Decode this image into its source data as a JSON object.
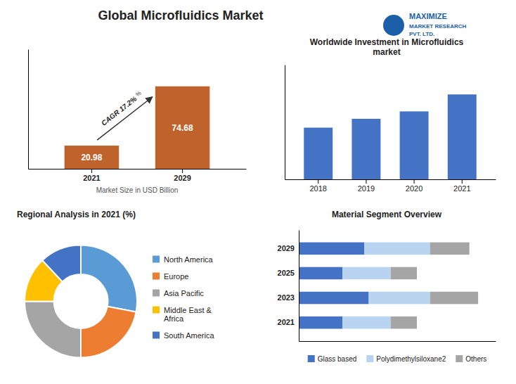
{
  "title": "Global Microfluidics Market",
  "annotations": [
    "MAXIMIZE",
    "MARKET RESEARCH",
    "PVT. LTD."
  ],
  "chart_data": [
    {
      "type": "bar",
      "categories": [
        "2021",
        "2029"
      ],
      "values": [
        20.98,
        74.68
      ],
      "color": "#C0622B",
      "x_label": "Market Size in USD Billion",
      "data_labels": true,
      "annotations": [
        "CAGR 17.2%",
        "%"
      ],
      "ylim": [
        0,
        108.286
      ],
      "tick_labels": "x"
    },
    {
      "type": "bar",
      "title": "Worldwide Investment in Microfluidics\nmarket",
      "categories": [
        "2018",
        "2019",
        "2020",
        "2021"
      ],
      "values": [
        7,
        8.2,
        9.2,
        11.5
      ],
      "color": "#4472C4",
      "ylim": [
        0,
        15.525
      ],
      "tick_labels": "x"
    },
    {
      "type": "donut",
      "title": "Regional Analysis in 2021 (%)",
      "categories": [
        "North America",
        "Europe",
        "Asia Pacific",
        "Middle East &\nAfrica",
        "South America"
      ],
      "values": [
        28,
        22,
        25,
        13,
        12
      ],
      "colors": [
        "#5B9BD5",
        "#ED7D31",
        "#A5A5A5",
        "#FFC000",
        "#4472C4"
      ],
      "legend": "right"
    },
    {
      "type": "bar",
      "orientation": "horizontal",
      "stacked": true,
      "title": "Material Segment Overview",
      "categories": [
        "2029",
        "2025",
        "2023",
        "2021"
      ],
      "series": [
        {
          "name": "Glass based",
          "color": "#4472C4",
          "values": [
            30,
            20,
            32,
            20
          ]
        },
        {
          "name": "Polydimethylsiloxane2",
          "color": "#B8D4F0",
          "values": [
            30,
            22,
            28,
            22
          ]
        },
        {
          "name": "Others",
          "color": "#A5A5A5",
          "values": [
            18,
            12,
            22,
            12
          ]
        }
      ],
      "xlim": [
        0,
        90
      ],
      "legend": "bottom",
      "tick_labels": "y"
    }
  ]
}
